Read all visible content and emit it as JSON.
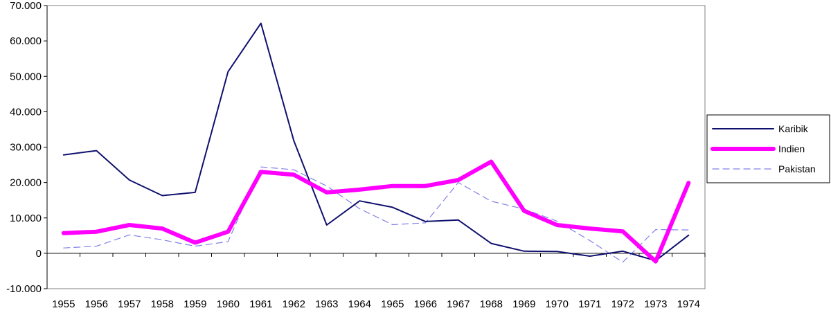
{
  "chart_data": {
    "type": "line",
    "title": "",
    "xlabel": "",
    "ylabel": "",
    "categories": [
      "1955",
      "1956",
      "1957",
      "1958",
      "1959",
      "1960",
      "1961",
      "1962",
      "1963",
      "1964",
      "1965",
      "1966",
      "1967",
      "1968",
      "1969",
      "1970",
      "1971",
      "1972",
      "1973",
      "1974"
    ],
    "ylim": [
      -10000,
      70000
    ],
    "yticks": [
      -10000,
      0,
      10000,
      20000,
      30000,
      40000,
      50000,
      60000,
      70000
    ],
    "ytick_labels": [
      "-10.000",
      "0",
      "10.000",
      "20.000",
      "30.000",
      "40.000",
      "50.000",
      "60.000",
      "70.000"
    ],
    "grid": false,
    "legend_position": "right",
    "series": [
      {
        "name": "Karibik",
        "color": "#10106e",
        "style": "solid",
        "values": [
          27800,
          29000,
          20700,
          16300,
          17200,
          51300,
          65000,
          31800,
          8000,
          14800,
          13000,
          9000,
          9400,
          2800,
          600,
          500,
          -800,
          600,
          -2100,
          5100
        ]
      },
      {
        "name": "Indien",
        "color": "#ff00ff",
        "style": "thick",
        "values": [
          5700,
          6100,
          8000,
          7000,
          3000,
          6100,
          23000,
          22200,
          17200,
          18000,
          19000,
          19000,
          20700,
          25900,
          12000,
          8000,
          7000,
          6200,
          -2300,
          19900
        ]
      },
      {
        "name": "Pakistan",
        "color": "#8080e8",
        "style": "dashed",
        "values": [
          1500,
          2000,
          5200,
          3800,
          2000,
          3300,
          24400,
          23600,
          19000,
          12600,
          8100,
          8600,
          20000,
          14700,
          12500,
          9100,
          3600,
          -2500,
          6700,
          6600
        ]
      }
    ]
  }
}
